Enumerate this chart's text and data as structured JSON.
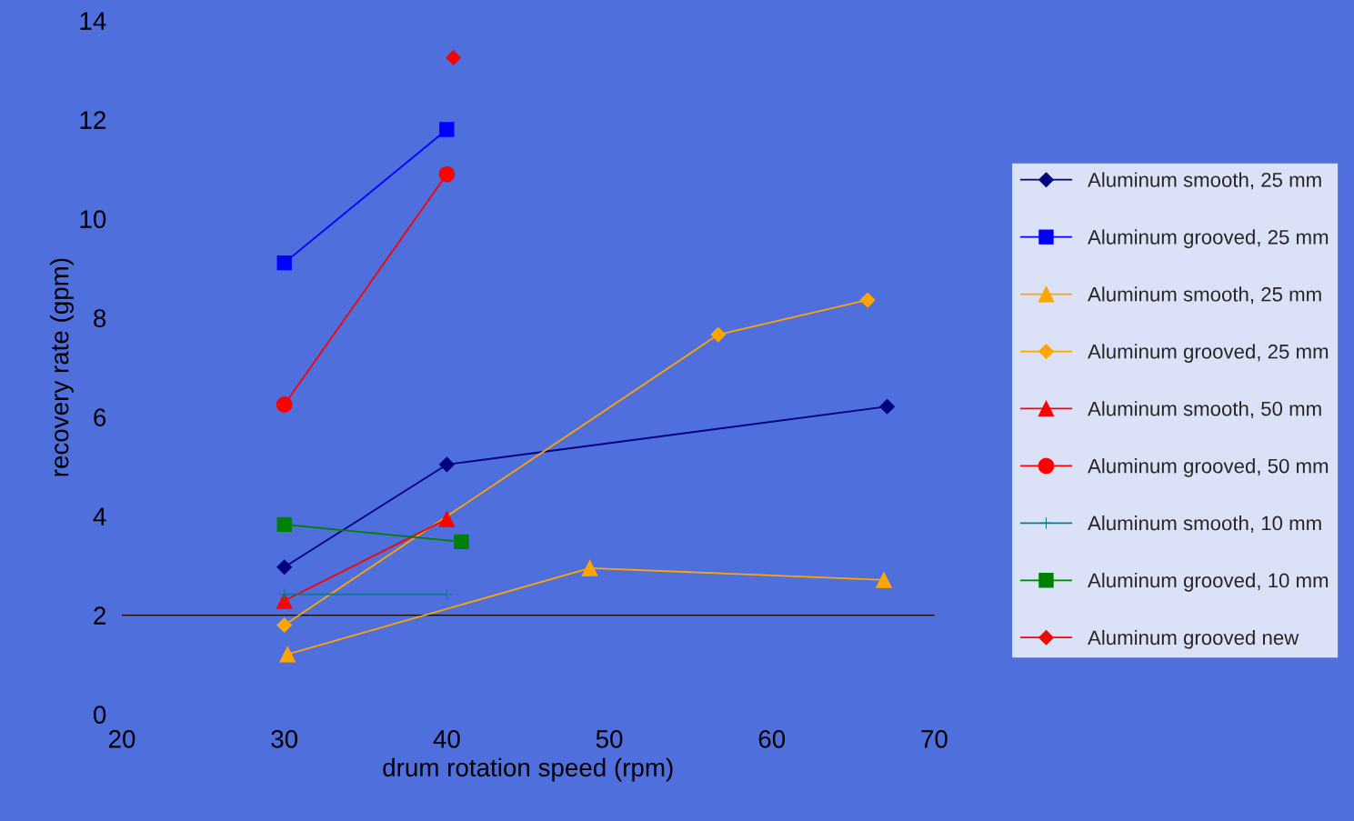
{
  "chart_data": {
    "type": "line",
    "xlabel": "drum rotation speed (rpm)",
    "ylabel": "recovery rate (gpm)",
    "xlim": [
      20,
      70
    ],
    "xticks": [
      20,
      30,
      40,
      50,
      60,
      70
    ],
    "ylim": [
      0,
      14
    ],
    "yticks": [
      0,
      2,
      4,
      6,
      8,
      10,
      12,
      14
    ],
    "grid": false,
    "legend": "right",
    "line_style": "solid",
    "ref_lines": [
      {
        "axis": "y",
        "value": 2,
        "color": "#000000"
      }
    ],
    "series": [
      {
        "name": "Aluminum smooth, 25 mm",
        "color": "#000080",
        "marker": "diamond",
        "x": [
          30,
          40,
          67.1
        ],
        "values": [
          2.97,
          5.04,
          6.21
        ]
      },
      {
        "name": "Aluminum grooved, 25 mm",
        "color": "#0000ff",
        "marker": "square",
        "x": [
          30,
          40
        ],
        "values": [
          9.11,
          11.8
        ]
      },
      {
        "name": "Aluminum smooth, 25 mm",
        "color": "#ffa500",
        "marker": "triangle",
        "x": [
          30.2,
          48.8,
          66.9
        ],
        "values": [
          1.21,
          2.95,
          2.71
        ]
      },
      {
        "name": "Aluminum grooved, 25 mm",
        "color": "#ffa500",
        "marker": "diamond",
        "x": [
          30,
          56.7,
          65.9
        ],
        "values": [
          1.8,
          7.66,
          8.36
        ]
      },
      {
        "name": "Aluminum smooth, 50 mm",
        "color": "#ff0000",
        "marker": "triangle",
        "x": [
          30,
          40
        ],
        "values": [
          2.29,
          3.94
        ]
      },
      {
        "name": "Aluminum grooved, 50 mm",
        "color": "#ff0000",
        "marker": "circle",
        "x": [
          30,
          40
        ],
        "values": [
          6.25,
          10.9
        ]
      },
      {
        "name": "Aluminum smooth, 10 mm",
        "color": "#008080",
        "marker": "cross",
        "x": [
          30,
          40
        ],
        "values": [
          2.42,
          2.42
        ]
      },
      {
        "name": "Aluminum grooved, 10 mm",
        "color": "#008000",
        "marker": "square",
        "x": [
          30,
          40.9
        ],
        "values": [
          3.83,
          3.48
        ]
      },
      {
        "name": "Aluminum grooved new",
        "color": "#ff0000",
        "marker": "diamond",
        "x": [
          40.4
        ],
        "values": [
          13.25
        ]
      }
    ]
  }
}
